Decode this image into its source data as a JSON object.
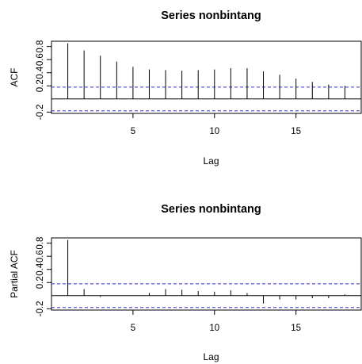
{
  "chart_data": [
    {
      "type": "bar",
      "title": "Series nonbintang",
      "xlabel": "Lag",
      "ylabel": "ACF",
      "xlim": [
        0.0,
        19.0
      ],
      "ylim": [
        -0.22,
        0.88
      ],
      "x_ticks": [
        5,
        10,
        15
      ],
      "y_ticks": [
        -0.2,
        0.2,
        0.4,
        0.6,
        0.8
      ],
      "y_tick_labels": [
        "-0.2",
        "0.2",
        "0.4",
        "0.6",
        "0.8"
      ],
      "confidence_bound": 0.18,
      "lags": [
        1,
        2,
        3,
        4,
        5,
        6,
        7,
        8,
        9,
        10,
        11,
        12,
        13,
        14,
        15,
        16,
        17,
        18,
        19
      ],
      "values": [
        0.85,
        0.74,
        0.66,
        0.57,
        0.49,
        0.45,
        0.44,
        0.43,
        0.44,
        0.45,
        0.47,
        0.47,
        0.42,
        0.37,
        0.31,
        0.26,
        0.22,
        0.2,
        0.22
      ],
      "grid": false,
      "legend": "none"
    },
    {
      "type": "bar",
      "title": "Series  nonbintang",
      "xlabel": "Lag",
      "ylabel": "Partial ACF",
      "xlim": [
        0.0,
        19.0
      ],
      "ylim": [
        -0.22,
        0.88
      ],
      "x_ticks": [
        5,
        10,
        15
      ],
      "y_ticks": [
        -0.2,
        0.2,
        0.4,
        0.6,
        0.8
      ],
      "y_tick_labels": [
        "-0.2",
        "0.2",
        "0.4",
        "0.6",
        "0.8"
      ],
      "confidence_bound": 0.18,
      "lags": [
        1,
        2,
        3,
        4,
        5,
        6,
        7,
        8,
        9,
        10,
        11,
        12,
        13,
        14,
        15,
        16,
        17,
        18,
        19
      ],
      "values": [
        0.85,
        0.1,
        -0.02,
        0.0,
        0.0,
        0.04,
        0.1,
        0.09,
        0.07,
        0.06,
        0.08,
        0.04,
        -0.12,
        -0.06,
        -0.06,
        -0.04,
        -0.04,
        0.02,
        0.15
      ],
      "grid": false,
      "legend": "none"
    }
  ]
}
